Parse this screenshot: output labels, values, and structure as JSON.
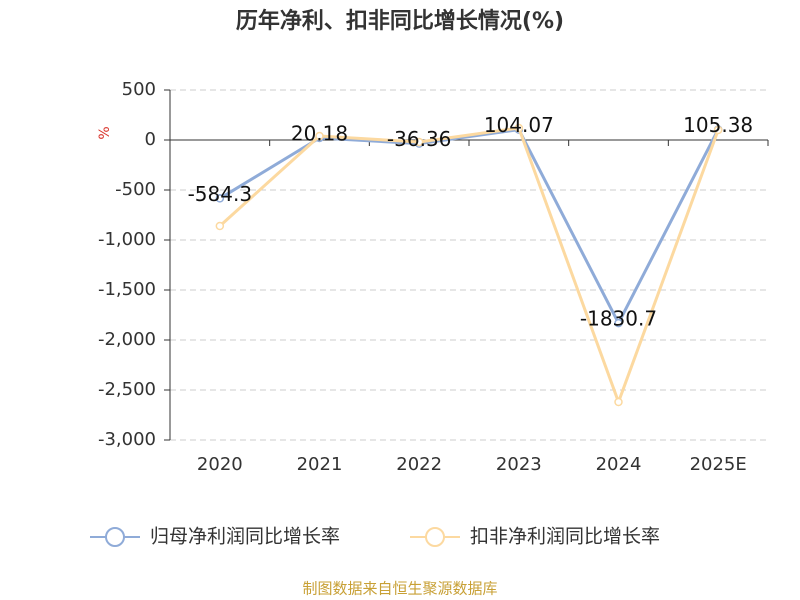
{
  "chart_data": {
    "type": "line",
    "title": "历年净利、扣非同比增长情况(%)",
    "y_label": "%",
    "source": "制图数据来自恒生聚源数据库",
    "categories": [
      "2020",
      "2021",
      "2022",
      "2023",
      "2024",
      "2025E"
    ],
    "series": [
      {
        "name": "归母净利润同比增长率",
        "color": "#8fabd8",
        "values": [
          -584.3,
          20.18,
          -36.36,
          104.07,
          -1830.7,
          105.38
        ],
        "data_labels": true
      },
      {
        "name": "扣非净利润同比增长率",
        "color": "#fcd9a0",
        "values": [
          -860,
          40,
          -20,
          120,
          -2620,
          100
        ],
        "data_labels": false
      }
    ],
    "ylim": [
      -3000,
      500
    ],
    "yticks": [
      500,
      0,
      -500,
      {
        "value": -1000,
        "label": "-1,000"
      },
      {
        "value": -1500,
        "label": "-1,500"
      },
      {
        "value": -2000,
        "label": "-2,000"
      },
      {
        "value": -2500,
        "label": "-2,500"
      },
      {
        "value": -3000,
        "label": "-3,000"
      }
    ],
    "grid": true
  }
}
